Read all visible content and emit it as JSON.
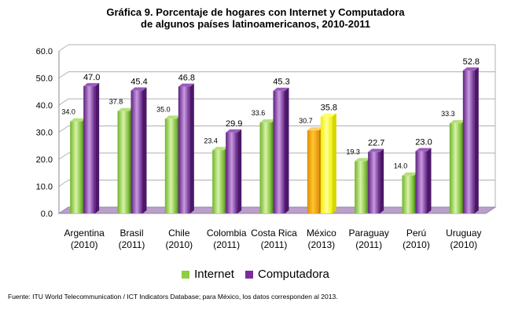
{
  "chart_data": {
    "type": "bar",
    "title": "Gráfica 9. Porcentaje de hogares con Internet y Computadora",
    "subtitle": "de algunos países latinoamericanos, 2010-2011",
    "categories": [
      {
        "name": "Argentina",
        "year": "(2010)"
      },
      {
        "name": "Brasil",
        "year": "(2011)"
      },
      {
        "name": "Chile",
        "year": "(2010)"
      },
      {
        "name": "Colombia",
        "year": "(2011)"
      },
      {
        "name": "Costa Rica",
        "year": "(2011)"
      },
      {
        "name": "México",
        "year": "(2013)"
      },
      {
        "name": "Paraguay",
        "year": "(2011)"
      },
      {
        "name": "Perú",
        "year": "(2010)"
      },
      {
        "name": "Uruguay",
        "year": "(2010)"
      }
    ],
    "series": [
      {
        "name": "Internet",
        "values": [
          34.0,
          37.8,
          35.0,
          23.4,
          33.6,
          30.7,
          19.3,
          14.0,
          33.3
        ]
      },
      {
        "name": "Computadora",
        "values": [
          47.0,
          45.4,
          46.8,
          29.9,
          45.3,
          35.8,
          22.7,
          23.0,
          52.8
        ]
      }
    ],
    "highlight_category_index": 5,
    "ylim": [
      0,
      60
    ],
    "yticks": [
      "0.0",
      "10.0",
      "20.0",
      "30.0",
      "40.0",
      "50.0",
      "60.0"
    ],
    "grid": true,
    "legend_position": "bottom",
    "colors": {
      "internet": "#8ccf3f",
      "computadora": "#7a2d9e",
      "highlight_internet": "#f5a800",
      "highlight_computadora": "#ffff1a",
      "floor": "#b8a0c8",
      "grid": "#b0b0b0"
    }
  },
  "legend": {
    "internet_label": "Internet",
    "computadora_label": "Computadora"
  },
  "source": "Fuente: ITU World Telecommunication / ICT Indicators Database; para México, los datos corresponden al 2013."
}
